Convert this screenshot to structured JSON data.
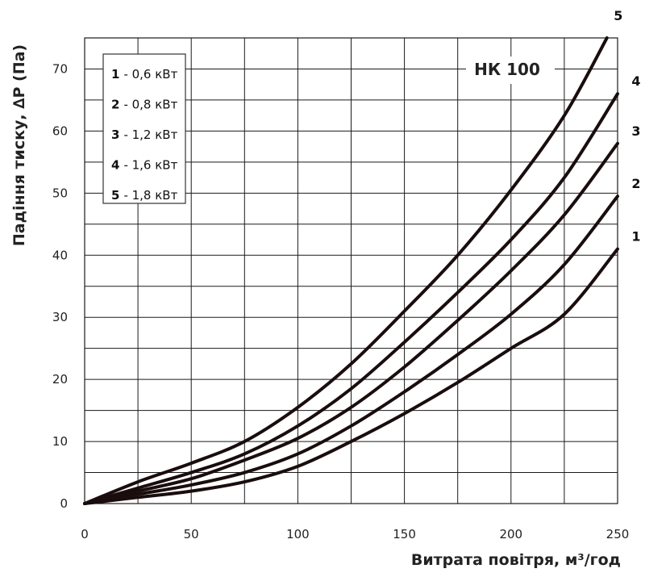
{
  "chart_data": {
    "type": "line",
    "title": "НК 100",
    "xlabel": "Витрата повітря, м³/год",
    "ylabel": "Падіння тиску, ∆P (Па)",
    "xlim": [
      0,
      250
    ],
    "ylim": [
      0,
      75
    ],
    "x_ticks": [
      0,
      50,
      100,
      150,
      200,
      250
    ],
    "y_ticks": [
      0,
      10,
      20,
      30,
      40,
      50,
      60,
      70
    ],
    "grid": true,
    "legend_position": "top-left",
    "legend": [
      {
        "num": "1",
        "text": "- 0,6 кВт"
      },
      {
        "num": "2",
        "text": "- 0,8 кВт"
      },
      {
        "num": "3",
        "text": "- 1,2 кВт"
      },
      {
        "num": "4",
        "text": "- 1,6 кВт"
      },
      {
        "num": "5",
        "text": "- 1,8 кВт"
      }
    ],
    "series": [
      {
        "name": "1",
        "x": [
          0,
          25,
          50,
          75,
          100,
          125,
          150,
          175,
          200,
          225,
          250
        ],
        "y": [
          0,
          1,
          2,
          3.5,
          6,
          10,
          14.5,
          19.5,
          25,
          30.5,
          41
        ]
      },
      {
        "name": "2",
        "x": [
          0,
          25,
          50,
          75,
          100,
          125,
          150,
          175,
          200,
          225,
          250
        ],
        "y": [
          0,
          1.5,
          3,
          5,
          8,
          12.5,
          18,
          24,
          30.5,
          38.5,
          49.5
        ]
      },
      {
        "name": "3",
        "x": [
          0,
          25,
          50,
          75,
          100,
          125,
          150,
          175,
          200,
          225,
          250
        ],
        "y": [
          0,
          2,
          4,
          7,
          10.5,
          15.5,
          22,
          29.5,
          37.5,
          46.5,
          58
        ]
      },
      {
        "name": "4",
        "x": [
          0,
          25,
          50,
          75,
          100,
          125,
          150,
          175,
          200,
          225,
          250
        ],
        "y": [
          0,
          2.5,
          5,
          8,
          12.5,
          18.5,
          26,
          34,
          42.5,
          52.5,
          66
        ]
      },
      {
        "name": "5",
        "x": [
          0,
          25,
          50,
          75,
          100,
          125,
          150,
          175,
          200,
          225,
          245
        ],
        "y": [
          0,
          3.5,
          6.5,
          10,
          15.5,
          22.5,
          31,
          40,
          50.5,
          62.5,
          75
        ]
      }
    ],
    "colors": {
      "curve": "#1a0d0d",
      "grid": "#1a1a1a"
    }
  }
}
